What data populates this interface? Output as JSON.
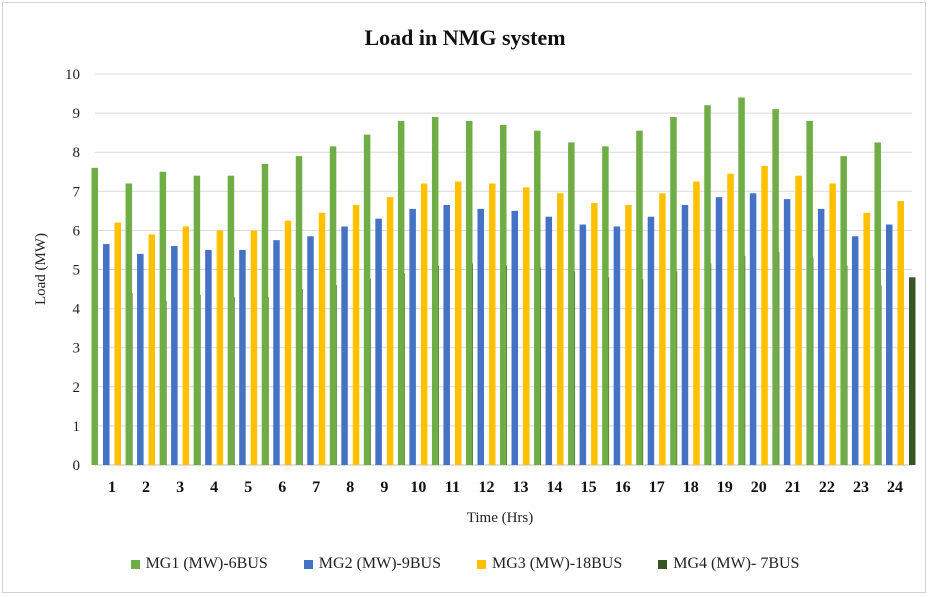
{
  "chart_data": {
    "type": "bar",
    "title": "Load in NMG system",
    "xlabel": "Time (Hrs)",
    "ylabel": "Load (MW)",
    "ylim": [
      0,
      10
    ],
    "yticks": [
      "0",
      "1",
      "2",
      "3",
      "4",
      "5",
      "6",
      "7",
      "8",
      "9",
      "10"
    ],
    "grid": true,
    "legend_position": "bottom",
    "categories": [
      "1",
      "2",
      "3",
      "4",
      "5",
      "6",
      "7",
      "8",
      "9",
      "10",
      "11",
      "12",
      "13",
      "14",
      "15",
      "16",
      "17",
      "18",
      "19",
      "20",
      "21",
      "22",
      "23",
      "24"
    ],
    "series": [
      {
        "name": "MG1 (MW)-6BUS",
        "color": "#70ad47",
        "values": [
          7.6,
          7.2,
          7.5,
          7.4,
          7.4,
          7.7,
          7.9,
          8.15,
          8.45,
          8.8,
          8.9,
          8.8,
          8.7,
          8.55,
          8.25,
          8.15,
          8.55,
          8.9,
          9.2,
          9.4,
          9.1,
          8.8,
          7.9,
          8.25
        ]
      },
      {
        "name": "MG2 (MW)-9BUS",
        "color": "#4472c4",
        "values": [
          5.65,
          5.4,
          5.6,
          5.5,
          5.5,
          5.75,
          5.85,
          6.1,
          6.3,
          6.55,
          6.65,
          6.55,
          6.5,
          6.35,
          6.15,
          6.1,
          6.35,
          6.65,
          6.85,
          6.95,
          6.8,
          6.55,
          5.85,
          6.15
        ]
      },
      {
        "name": "MG3 (MW)-18BUS",
        "color": "#ffc000",
        "values": [
          6.2,
          5.9,
          6.1,
          6.0,
          6.0,
          6.25,
          6.45,
          6.65,
          6.85,
          7.2,
          7.25,
          7.2,
          7.1,
          6.95,
          6.7,
          6.65,
          6.95,
          7.25,
          7.45,
          7.65,
          7.4,
          7.2,
          6.45,
          6.75
        ]
      },
      {
        "name": "MG4 (MW)- 7BUS",
        "color": "#375623",
        "values": [
          4.4,
          4.2,
          4.35,
          4.3,
          4.3,
          4.5,
          4.6,
          4.75,
          4.9,
          5.1,
          5.15,
          5.1,
          5.05,
          4.95,
          4.8,
          4.75,
          4.95,
          5.15,
          5.35,
          5.45,
          5.3,
          5.1,
          4.6,
          4.8
        ]
      }
    ]
  }
}
